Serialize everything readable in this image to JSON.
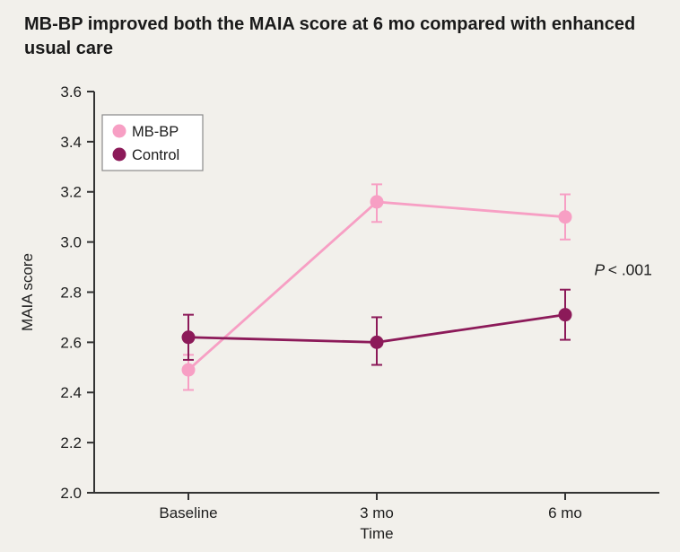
{
  "figure": {
    "title": "MB-BP improved both the MAIA score at 6 mo compared with enhanced usual care"
  },
  "style": {
    "background": "#f2f0eb",
    "axis_color": "#333333",
    "text_color": "#1d1d1d",
    "legend_border": "#8a8a8a",
    "legend_fill": "#ffffff"
  },
  "chart_data": {
    "type": "line",
    "title": "MB-BP improved both the MAIA score at 6 mo compared with enhanced usual care",
    "categories": [
      "Baseline",
      "3 mo",
      "6 mo"
    ],
    "series": [
      {
        "name": "MB-BP",
        "color": "#f79fc4",
        "values": [
          2.49,
          3.16,
          3.1
        ],
        "error_low": [
          2.41,
          3.08,
          3.01
        ],
        "error_high": [
          2.55,
          3.23,
          3.19
        ]
      },
      {
        "name": "Control",
        "color": "#8c1a59",
        "values": [
          2.62,
          2.6,
          2.71
        ],
        "error_low": [
          2.53,
          2.51,
          2.61
        ],
        "error_high": [
          2.71,
          2.7,
          2.81
        ]
      }
    ],
    "xlabel": "Time",
    "ylabel": "MAIA score",
    "ylim": [
      2.0,
      3.6
    ],
    "ytick_step": 0.2,
    "grid": false,
    "legend_position": "top-left",
    "annotation": {
      "text": "P < .001",
      "x_frac": 0.885,
      "y_value": 2.89
    }
  }
}
